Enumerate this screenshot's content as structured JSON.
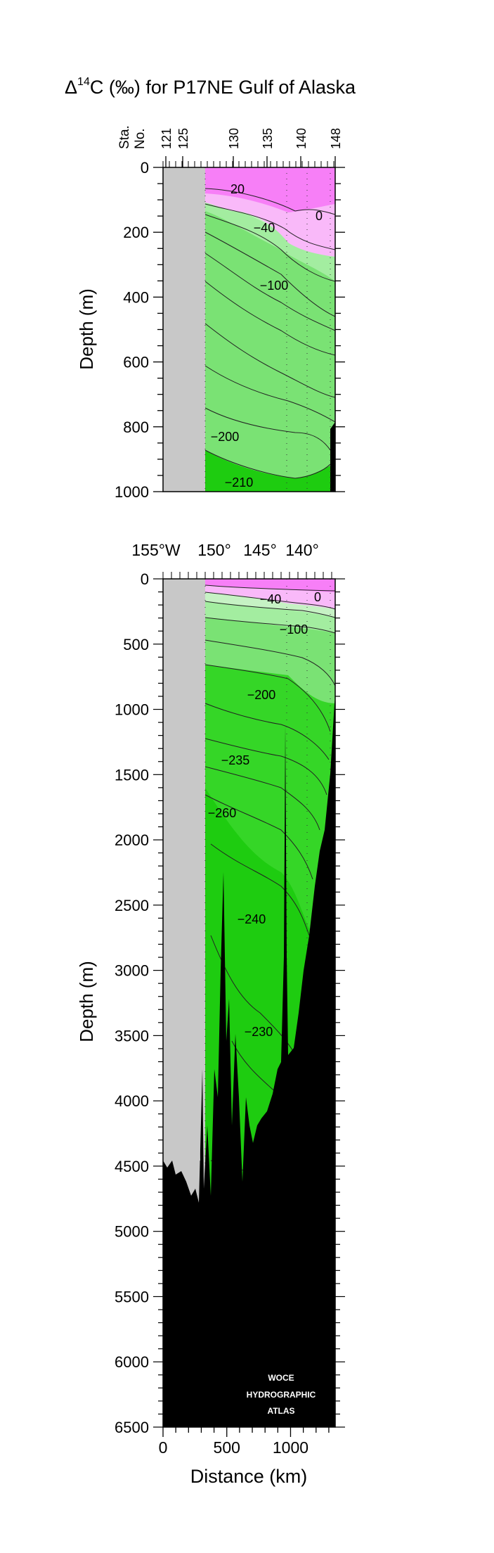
{
  "title": {
    "delta": "Δ",
    "sup": "14",
    "main": "C (‰) for P17NE Gulf of Alaska"
  },
  "colors": {
    "magenta": "#f77ff7",
    "light_magenta": "#f9b9f9",
    "pale_green": "#c6f2c4",
    "light_green": "#a3eda0",
    "mid_green": "#7ae274",
    "green": "#35d627",
    "bright_green": "#1ecc10",
    "land_gray": "#c8c8c8",
    "bathymetry": "#000000"
  },
  "station_axis": {
    "label_line1": "Sta.",
    "label_line2": "No.",
    "ticks": [
      "121",
      "125",
      "130",
      "135",
      "140",
      "148"
    ]
  },
  "longitude_axis": {
    "ticks": [
      "155°W",
      "150°",
      "145°",
      "140°"
    ]
  },
  "chart_data": [
    {
      "type": "heatmap",
      "panel": "upper",
      "ylabel": "Depth (m)",
      "ylim": [
        1000,
        0
      ],
      "xlim": [
        0,
        1350
      ],
      "y_ticks": [
        "0",
        "200",
        "400",
        "600",
        "800",
        "1000"
      ],
      "contour_labels": [
        "20",
        "0",
        "−40",
        "−100",
        "−200",
        "−210"
      ]
    },
    {
      "type": "heatmap",
      "panel": "lower",
      "xlabel": "Distance (km)",
      "ylabel": "Depth (m)",
      "ylim": [
        6500,
        0
      ],
      "xlim": [
        0,
        1350
      ],
      "x_ticks": [
        "0",
        "500",
        "1000"
      ],
      "y_ticks": [
        "0",
        "500",
        "1000",
        "1500",
        "2000",
        "2500",
        "3000",
        "3500",
        "4000",
        "4500",
        "5000",
        "5500",
        "6000",
        "6500"
      ],
      "contour_labels": [
        "0",
        "−40",
        "−100",
        "−200",
        "−235",
        "−260",
        "−240",
        "−230"
      ]
    }
  ],
  "watermark": {
    "line1": "WOCE",
    "line2": "HYDROGRAPHIC",
    "line3": "ATLAS"
  }
}
